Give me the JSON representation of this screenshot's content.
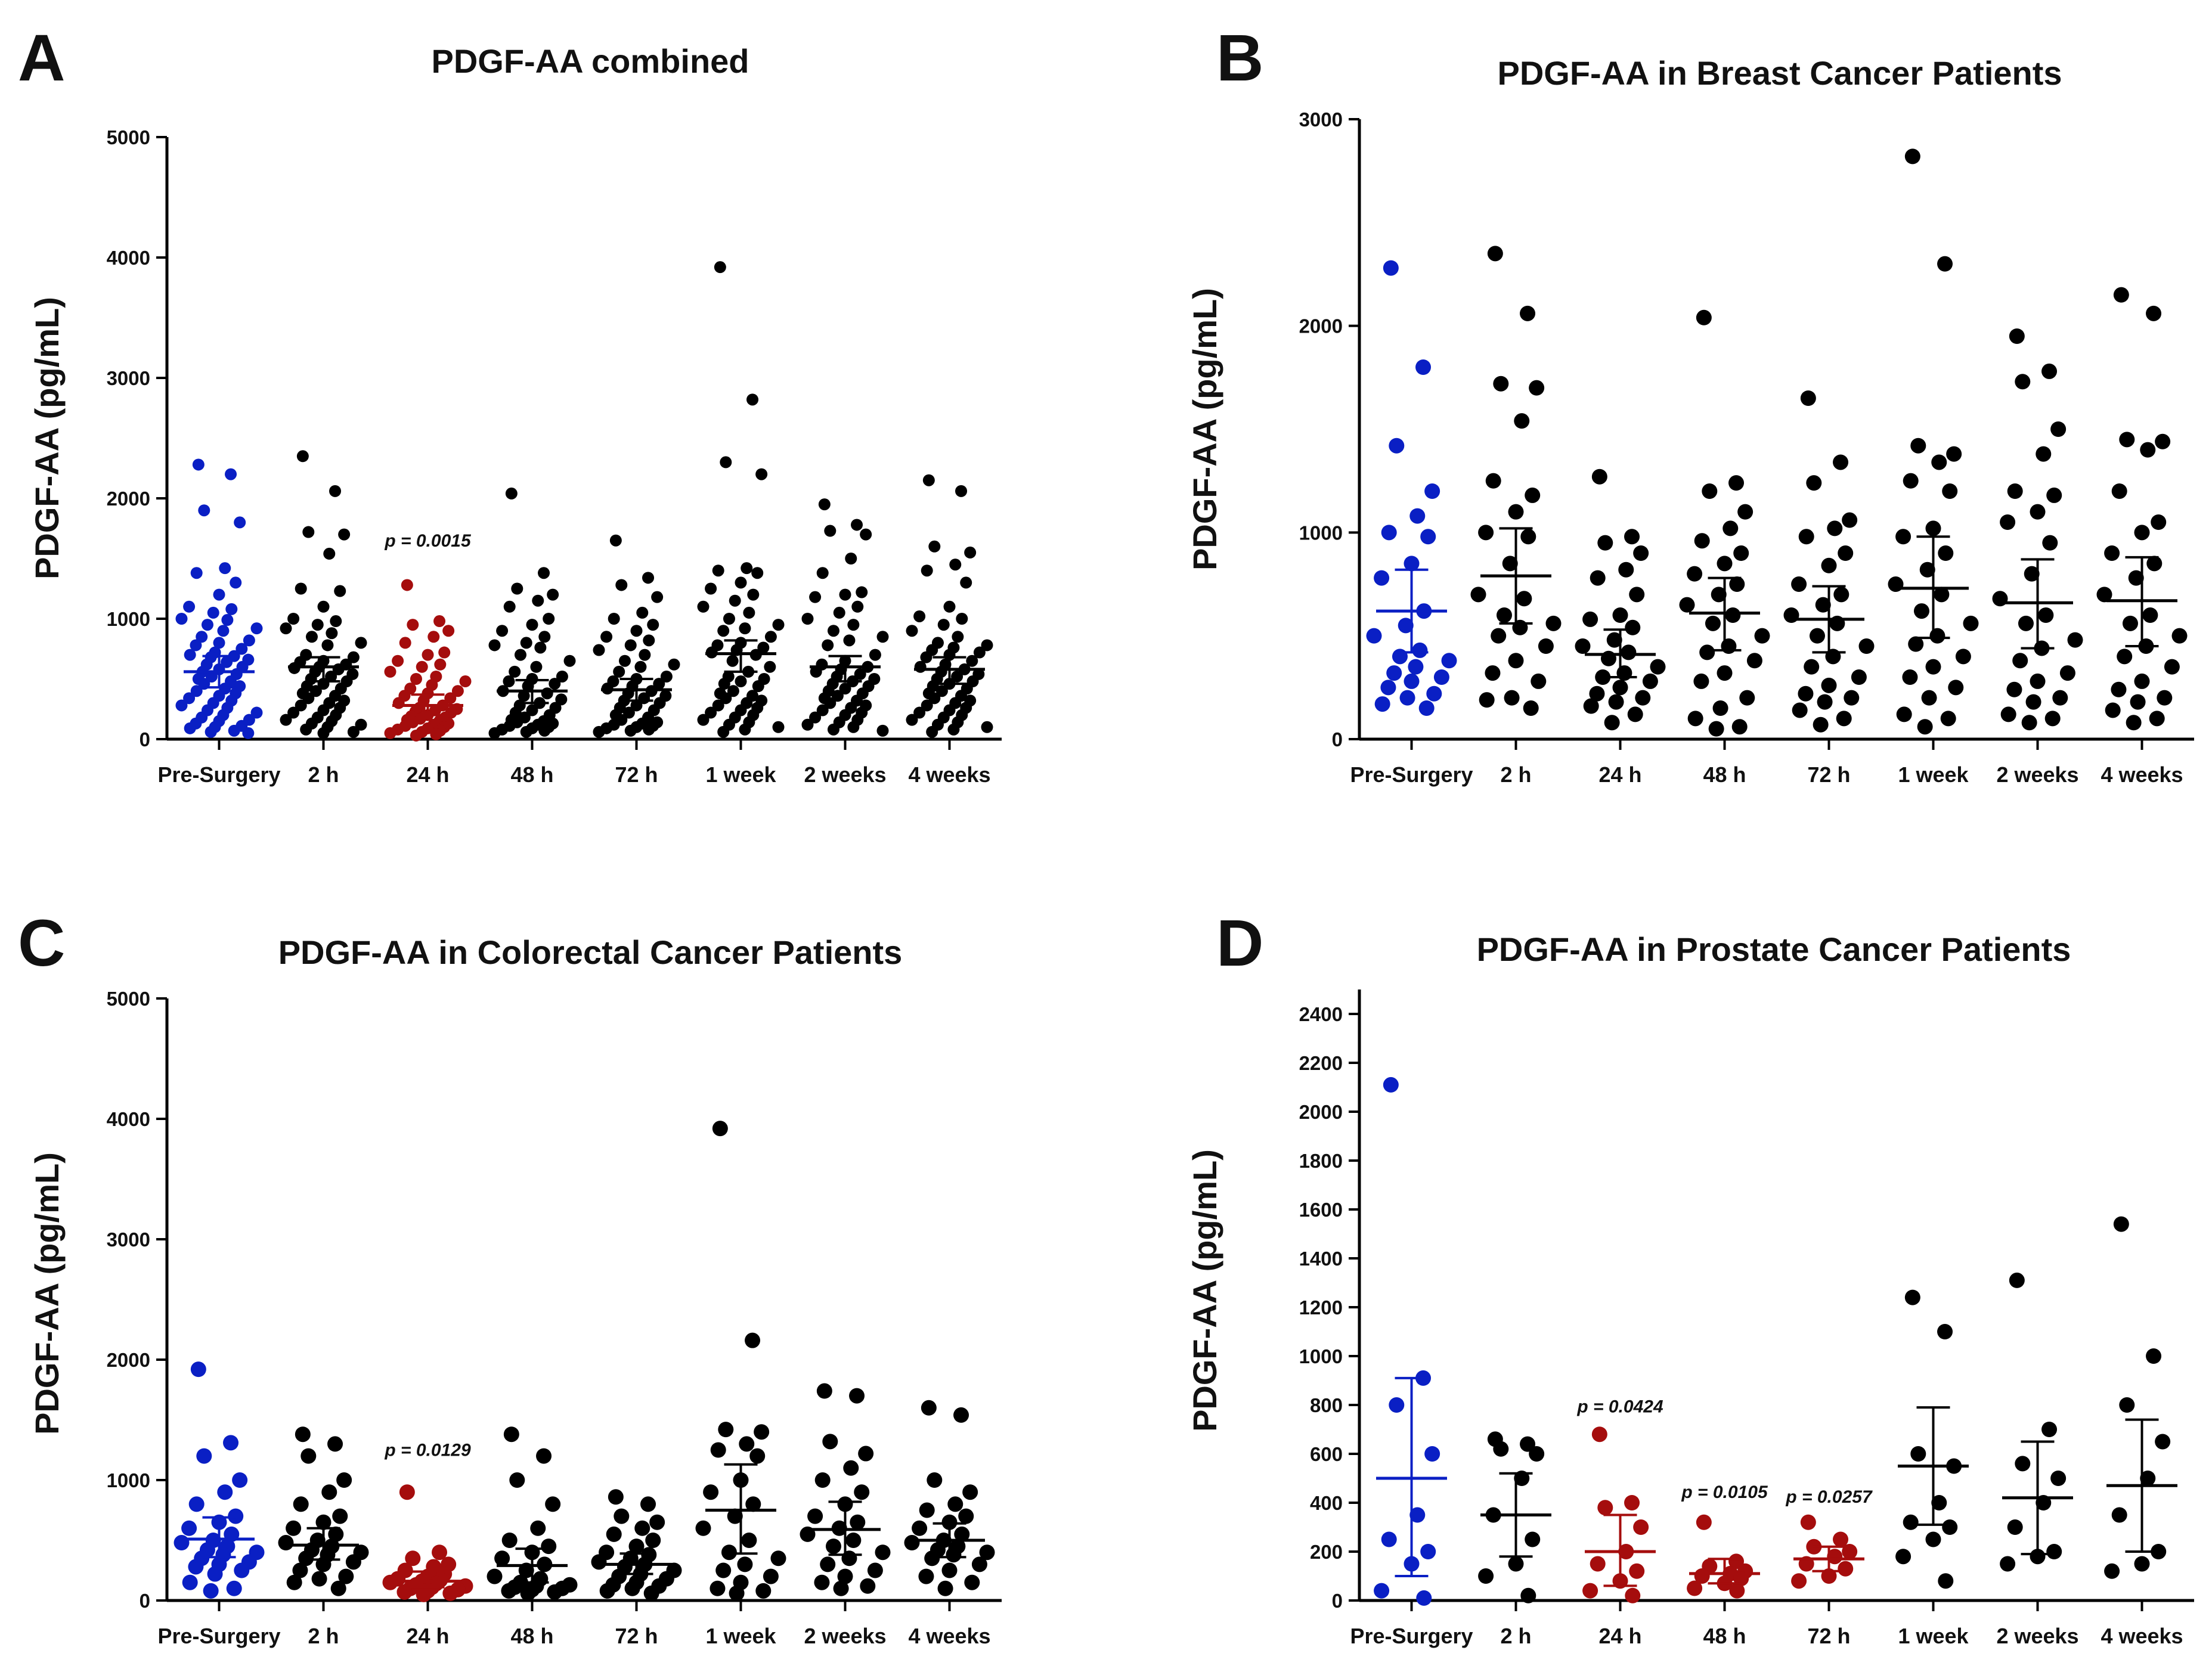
{
  "colors": {
    "pre": "#0a1fc4",
    "sig": "#a50d0d",
    "normal": "#000000"
  },
  "chart_data": [
    {
      "panel": "A",
      "type": "scatter",
      "title": "PDGF-AA combined",
      "ylabel": "PDGF-AA (pg/mL)",
      "ylim": [
        0,
        5000
      ],
      "yticks": [
        0,
        1000,
        2000,
        3000,
        4000,
        5000
      ],
      "categories": [
        "Pre-Surgery",
        "2 h",
        "24 h",
        "48 h",
        "72 h",
        "1 week",
        "2 weeks",
        "4 weeks"
      ],
      "highlight": [
        "pre",
        "normal",
        "sig",
        "normal",
        "normal",
        "normal",
        "normal",
        "normal"
      ],
      "annotations": [
        {
          "category": "24 h",
          "text": "p = 0.0015",
          "y": 1600
        }
      ],
      "summary": [
        {
          "mean": 560,
          "lo": 430,
          "hi": 690
        },
        {
          "mean": 600,
          "lo": 480,
          "hi": 680
        },
        {
          "mean": 280,
          "lo": 200,
          "hi": 370
        },
        {
          "mean": 400,
          "lo": 300,
          "hi": 490
        },
        {
          "mean": 410,
          "lo": 320,
          "hi": 500
        },
        {
          "mean": 710,
          "lo": 560,
          "hi": 820
        },
        {
          "mean": 600,
          "lo": 480,
          "hi": 690
        },
        {
          "mean": 580,
          "lo": 460,
          "hi": 680
        }
      ],
      "points": [
        [
          2280,
          2200,
          1900,
          1800,
          1420,
          1380,
          1300,
          1200,
          1100,
          1080,
          1050,
          1000,
          990,
          950,
          920,
          900,
          850,
          820,
          800,
          780,
          750,
          720,
          700,
          690,
          680,
          660,
          640,
          620,
          600,
          580,
          560,
          540,
          520,
          500,
          480,
          460,
          440,
          420,
          400,
          380,
          360,
          340,
          320,
          300,
          280,
          260,
          240,
          220,
          200,
          180,
          160,
          150,
          130,
          110,
          100,
          90,
          70,
          60,
          50
        ],
        [
          2350,
          2060,
          1720,
          1700,
          1540,
          1250,
          1230,
          1100,
          1000,
          980,
          950,
          920,
          880,
          850,
          800,
          780,
          700,
          680,
          650,
          640,
          620,
          600,
          590,
          580,
          560,
          540,
          520,
          500,
          480,
          460,
          440,
          420,
          400,
          380,
          360,
          340,
          320,
          300,
          280,
          260,
          240,
          220,
          200,
          180,
          160,
          150,
          130,
          120,
          100,
          80,
          60,
          50
        ],
        [
          1280,
          980,
          950,
          900,
          850,
          800,
          720,
          700,
          650,
          620,
          600,
          560,
          520,
          500,
          480,
          450,
          420,
          400,
          380,
          360,
          340,
          320,
          300,
          280,
          260,
          250,
          240,
          230,
          220,
          200,
          190,
          180,
          170,
          160,
          150,
          140,
          130,
          120,
          110,
          100,
          90,
          80,
          70,
          60,
          50,
          40,
          30
        ],
        [
          2040,
          1380,
          1250,
          1200,
          1150,
          1100,
          1000,
          950,
          900,
          850,
          800,
          780,
          760,
          700,
          650,
          600,
          560,
          520,
          500,
          480,
          460,
          440,
          400,
          380,
          360,
          330,
          300,
          280,
          260,
          240,
          220,
          200,
          180,
          160,
          150,
          140,
          130,
          120,
          110,
          100,
          90,
          80,
          70,
          60,
          50
        ],
        [
          1650,
          1340,
          1280,
          1180,
          1050,
          1000,
          950,
          900,
          850,
          820,
          780,
          740,
          700,
          650,
          620,
          600,
          560,
          520,
          500,
          480,
          460,
          440,
          420,
          400,
          380,
          360,
          340,
          320,
          300,
          280,
          260,
          240,
          220,
          200,
          180,
          160,
          140,
          130,
          120,
          110,
          100,
          90,
          80,
          70,
          60
        ],
        [
          3920,
          2820,
          2300,
          2200,
          1420,
          1400,
          1380,
          1300,
          1250,
          1200,
          1150,
          1100,
          1050,
          1000,
          950,
          920,
          900,
          850,
          800,
          780,
          760,
          740,
          720,
          700,
          650,
          600,
          560,
          520,
          500,
          480,
          460,
          440,
          400,
          380,
          360,
          340,
          320,
          300,
          280,
          260,
          240,
          220,
          200,
          180,
          160,
          140,
          120,
          100,
          80,
          60
        ],
        [
          1950,
          1780,
          1730,
          1700,
          1500,
          1380,
          1220,
          1200,
          1180,
          1100,
          1050,
          1000,
          950,
          900,
          850,
          820,
          780,
          700,
          650,
          620,
          600,
          580,
          560,
          540,
          520,
          500,
          480,
          460,
          440,
          420,
          400,
          380,
          360,
          340,
          320,
          300,
          280,
          260,
          240,
          220,
          200,
          180,
          160,
          140,
          120,
          100,
          80,
          70
        ],
        [
          2150,
          2060,
          1600,
          1550,
          1450,
          1400,
          1300,
          1100,
          1020,
          1000,
          950,
          900,
          850,
          800,
          780,
          760,
          740,
          720,
          700,
          680,
          650,
          620,
          600,
          580,
          560,
          540,
          520,
          500,
          480,
          460,
          440,
          420,
          400,
          380,
          360,
          340,
          320,
          300,
          280,
          260,
          240,
          220,
          200,
          180,
          160,
          140,
          120,
          100,
          80,
          60
        ]
      ]
    },
    {
      "panel": "B",
      "type": "scatter",
      "title": "PDGF-AA in Breast Cancer Patients",
      "ylabel": "PDGF-AA (pg/mL)",
      "ylim": [
        0,
        3000
      ],
      "yticks": [
        0,
        1000,
        2000,
        3000
      ],
      "categories": [
        "Pre-Surgery",
        "2 h",
        "24 h",
        "48 h",
        "72 h",
        "1 week",
        "2 weeks",
        "4 weeks"
      ],
      "highlight": [
        "pre",
        "normal",
        "normal",
        "normal",
        "normal",
        "normal",
        "normal",
        "normal"
      ],
      "annotations": [],
      "summary": [
        {
          "mean": 620,
          "lo": 420,
          "hi": 820
        },
        {
          "mean": 790,
          "lo": 560,
          "hi": 1020
        },
        {
          "mean": 410,
          "lo": 300,
          "hi": 530
        },
        {
          "mean": 610,
          "lo": 430,
          "hi": 780
        },
        {
          "mean": 580,
          "lo": 420,
          "hi": 740
        },
        {
          "mean": 730,
          "lo": 490,
          "hi": 980
        },
        {
          "mean": 660,
          "lo": 440,
          "hi": 870
        },
        {
          "mean": 670,
          "lo": 450,
          "hi": 880
        }
      ],
      "points": [
        [
          2280,
          1800,
          1420,
          1200,
          1080,
          1000,
          980,
          850,
          780,
          620,
          550,
          500,
          430,
          400,
          380,
          350,
          320,
          300,
          280,
          250,
          220,
          200,
          170,
          150
        ],
        [
          2350,
          2060,
          1720,
          1700,
          1540,
          1250,
          1180,
          1100,
          1000,
          980,
          850,
          700,
          680,
          600,
          560,
          540,
          500,
          450,
          380,
          320,
          280,
          200,
          190,
          150
        ],
        [
          1270,
          980,
          950,
          900,
          820,
          780,
          700,
          600,
          580,
          540,
          480,
          450,
          420,
          390,
          350,
          320,
          300,
          280,
          250,
          220,
          200,
          180,
          160,
          120,
          80
        ],
        [
          2040,
          1240,
          1200,
          1100,
          1020,
          960,
          900,
          850,
          800,
          750,
          700,
          650,
          600,
          560,
          500,
          450,
          420,
          380,
          320,
          280,
          200,
          150,
          100,
          60,
          50
        ],
        [
          1650,
          1340,
          1240,
          1060,
          1020,
          980,
          900,
          840,
          750,
          700,
          650,
          600,
          560,
          500,
          450,
          400,
          350,
          300,
          260,
          220,
          200,
          180,
          140,
          100,
          70
        ],
        [
          2820,
          2300,
          1420,
          1380,
          1340,
          1250,
          1200,
          1020,
          980,
          900,
          820,
          750,
          700,
          620,
          560,
          500,
          460,
          400,
          350,
          300,
          250,
          200,
          120,
          100,
          60
        ],
        [
          1950,
          1780,
          1730,
          1500,
          1380,
          1200,
          1180,
          1100,
          1050,
          950,
          800,
          680,
          600,
          560,
          480,
          440,
          380,
          320,
          280,
          240,
          200,
          180,
          120,
          100,
          80
        ],
        [
          2150,
          2060,
          1450,
          1440,
          1400,
          1200,
          1050,
          1000,
          900,
          850,
          780,
          700,
          600,
          560,
          500,
          450,
          400,
          350,
          280,
          240,
          200,
          180,
          140,
          100,
          80
        ]
      ]
    },
    {
      "panel": "C",
      "type": "scatter",
      "title": "PDGF-AA in Colorectal Cancer Patients",
      "ylabel": "PDGF-AA (pg/mL)",
      "ylim": [
        0,
        5000
      ],
      "yticks": [
        0,
        1000,
        2000,
        3000,
        4000,
        5000
      ],
      "categories": [
        "Pre-Surgery",
        "2 h",
        "24 h",
        "48 h",
        "72 h",
        "1 week",
        "2 weeks",
        "4 weeks"
      ],
      "highlight": [
        "pre",
        "normal",
        "sig",
        "normal",
        "normal",
        "normal",
        "normal",
        "normal"
      ],
      "annotations": [
        {
          "category": "24 h",
          "text": "p = 0.0129",
          "y": 1200
        }
      ],
      "summary": [
        {
          "mean": 510,
          "lo": 360,
          "hi": 690
        },
        {
          "mean": 460,
          "lo": 340,
          "hi": 600
        },
        {
          "mean": 160,
          "lo": 110,
          "hi": 240
        },
        {
          "mean": 290,
          "lo": 150,
          "hi": 430
        },
        {
          "mean": 300,
          "lo": 220,
          "hi": 390
        },
        {
          "mean": 750,
          "lo": 390,
          "hi": 1130
        },
        {
          "mean": 590,
          "lo": 380,
          "hi": 820
        },
        {
          "mean": 500,
          "lo": 360,
          "hi": 640
        }
      ],
      "points": [
        [
          1920,
          1310,
          1200,
          1000,
          900,
          800,
          700,
          650,
          600,
          550,
          500,
          480,
          450,
          420,
          400,
          380,
          350,
          320,
          300,
          280,
          250,
          220,
          150,
          100,
          80
        ],
        [
          1380,
          1300,
          1200,
          1000,
          900,
          800,
          700,
          650,
          600,
          550,
          500,
          480,
          450,
          420,
          400,
          380,
          350,
          320,
          300,
          250,
          200,
          180,
          150,
          100
        ],
        [
          900,
          400,
          350,
          300,
          280,
          250,
          220,
          200,
          180,
          170,
          160,
          150,
          140,
          130,
          120,
          110,
          100,
          90,
          80,
          70,
          60,
          50
        ],
        [
          1380,
          1200,
          1000,
          800,
          600,
          500,
          450,
          400,
          350,
          300,
          250,
          200,
          180,
          150,
          130,
          120,
          110,
          100,
          90,
          80,
          70,
          60
        ],
        [
          860,
          800,
          700,
          650,
          600,
          550,
          500,
          450,
          400,
          380,
          350,
          320,
          300,
          280,
          250,
          220,
          200,
          180,
          150,
          130,
          120,
          100,
          80,
          60
        ],
        [
          3920,
          2160,
          1420,
          1400,
          1300,
          1250,
          1200,
          1000,
          900,
          800,
          700,
          600,
          500,
          400,
          350,
          300,
          250,
          200,
          150,
          100,
          80,
          60
        ],
        [
          1740,
          1700,
          1320,
          1220,
          1100,
          1000,
          900,
          800,
          700,
          650,
          600,
          550,
          500,
          450,
          400,
          350,
          300,
          250,
          200,
          150,
          120,
          100
        ],
        [
          1600,
          1540,
          1000,
          900,
          800,
          750,
          700,
          650,
          600,
          550,
          500,
          480,
          450,
          420,
          400,
          380,
          350,
          300,
          250,
          200,
          150,
          100
        ]
      ]
    },
    {
      "panel": "D",
      "type": "scatter",
      "title": "PDGF-AA in Prostate Cancer Patients",
      "ylabel": "PDGF-AA (pg/mL)",
      "ylim": [
        0,
        2500
      ],
      "yticks": [
        0,
        200,
        400,
        600,
        800,
        1000,
        1200,
        1400,
        1600,
        1800,
        2000,
        2200,
        2400
      ],
      "categories": [
        "Pre-Surgery",
        "2 h",
        "24 h",
        "48 h",
        "72 h",
        "1 week",
        "2 weeks",
        "4 weeks"
      ],
      "highlight": [
        "pre",
        "normal",
        "sig",
        "sig",
        "sig",
        "normal",
        "normal",
        "normal"
      ],
      "annotations": [
        {
          "category": "24 h",
          "text": "p = 0.0424",
          "y": 770
        },
        {
          "category": "48 h",
          "text": "p = 0.0105",
          "y": 420
        },
        {
          "category": "72 h",
          "text": "p = 0.0257",
          "y": 400
        }
      ],
      "summary": [
        {
          "mean": 500,
          "lo": 100,
          "hi": 910
        },
        {
          "mean": 350,
          "lo": 180,
          "hi": 520
        },
        {
          "mean": 200,
          "lo": 60,
          "hi": 350
        },
        {
          "mean": 110,
          "lo": 70,
          "hi": 170
        },
        {
          "mean": 170,
          "lo": 120,
          "hi": 220
        },
        {
          "mean": 550,
          "lo": 310,
          "hi": 790
        },
        {
          "mean": 420,
          "lo": 190,
          "hi": 650
        },
        {
          "mean": 470,
          "lo": 200,
          "hi": 740
        }
      ],
      "points": [
        [
          2110,
          910,
          800,
          600,
          350,
          250,
          200,
          150,
          40,
          10
        ],
        [
          660,
          640,
          620,
          600,
          500,
          350,
          250,
          150,
          100,
          20
        ],
        [
          680,
          400,
          380,
          300,
          200,
          150,
          120,
          80,
          40,
          20
        ],
        [
          320,
          160,
          140,
          120,
          110,
          100,
          90,
          70,
          50,
          40
        ],
        [
          320,
          250,
          220,
          200,
          180,
          150,
          130,
          100,
          80
        ],
        [
          1240,
          1100,
          600,
          550,
          400,
          320,
          300,
          250,
          180,
          80
        ],
        [
          1310,
          700,
          560,
          500,
          400,
          300,
          200,
          180,
          150
        ],
        [
          1540,
          1000,
          800,
          650,
          500,
          350,
          200,
          150,
          120
        ]
      ]
    }
  ]
}
